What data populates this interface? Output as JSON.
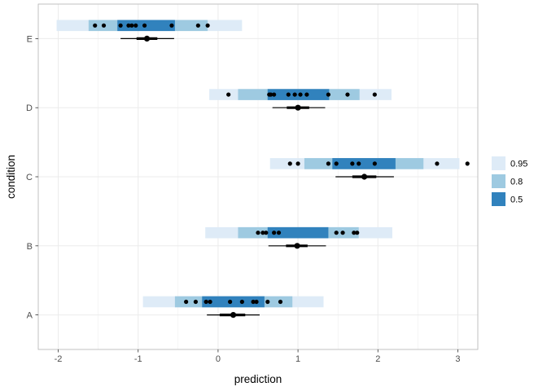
{
  "chart_data": {
    "type": "interval",
    "xlabel": "prediction",
    "ylabel": "condition",
    "xlim": [
      -2.25,
      3.25
    ],
    "x_ticks": [
      -2,
      -1,
      0,
      1,
      2,
      3
    ],
    "x_tick_labels": [
      "-2",
      "-1",
      "0",
      "1",
      "2",
      "3"
    ],
    "categories": [
      "A",
      "B",
      "C",
      "D",
      "E"
    ],
    "grid": true,
    "legend": {
      "position": "right",
      "entries": [
        {
          "label": "0.95",
          "color": "#deebf7"
        },
        {
          "label": "0.8",
          "color": "#9ecae1"
        },
        {
          "label": "0.5",
          "color": "#3182bd"
        }
      ]
    },
    "groups": [
      {
        "condition": "A",
        "intervals": {
          "0.95": [
            -0.94,
            1.32
          ],
          "0.8": [
            -0.54,
            0.93
          ],
          "0.5": [
            -0.2,
            0.58
          ]
        },
        "points": [
          -0.4,
          -0.28,
          -0.15,
          -0.1,
          0.15,
          0.3,
          0.44,
          0.48,
          0.62,
          0.78
        ],
        "summary": {
          "median": 0.19,
          "inner": [
            0.02,
            0.34
          ],
          "outer": [
            -0.14,
            0.52
          ]
        }
      },
      {
        "condition": "B",
        "intervals": {
          "0.95": [
            -0.16,
            2.18
          ],
          "0.8": [
            0.25,
            1.76
          ],
          "0.5": [
            0.62,
            1.38
          ]
        },
        "points": [
          0.5,
          0.56,
          0.6,
          0.7,
          0.76,
          1.48,
          1.56,
          1.7,
          1.74
        ],
        "summary": {
          "median": 0.99,
          "inner": [
            0.85,
            1.12
          ],
          "outer": [
            0.63,
            1.35
          ]
        }
      },
      {
        "condition": "C",
        "intervals": {
          "0.95": [
            0.65,
            3.02
          ],
          "0.8": [
            1.08,
            2.57
          ],
          "0.5": [
            1.43,
            2.22
          ]
        },
        "points": [
          0.9,
          1.0,
          1.38,
          1.48,
          1.68,
          1.76,
          1.96,
          2.74,
          3.12
        ],
        "summary": {
          "median": 1.83,
          "inner": [
            1.68,
            1.98
          ],
          "outer": [
            1.47,
            2.2
          ]
        }
      },
      {
        "condition": "D",
        "intervals": {
          "0.95": [
            -0.11,
            2.17
          ],
          "0.8": [
            0.25,
            1.77
          ],
          "0.5": [
            0.62,
            1.39
          ]
        },
        "points": [
          0.13,
          0.64,
          0.66,
          0.7,
          0.88,
          0.96,
          1.03,
          1.11,
          1.38,
          1.62,
          1.96
        ],
        "summary": {
          "median": 1.0,
          "inner": [
            0.86,
            1.14
          ],
          "outer": [
            0.68,
            1.34
          ]
        }
      },
      {
        "condition": "E",
        "intervals": {
          "0.95": [
            -2.02,
            0.3
          ],
          "0.8": [
            -1.62,
            -0.13
          ],
          "0.5": [
            -1.26,
            -0.54
          ]
        },
        "points": [
          -1.54,
          -1.43,
          -1.22,
          -1.12,
          -1.08,
          -1.03,
          -0.92,
          -0.58,
          -0.25,
          -0.13
        ],
        "summary": {
          "median": -0.89,
          "inner": [
            -1.02,
            -0.76
          ],
          "outer": [
            -1.22,
            -0.55
          ]
        }
      }
    ]
  }
}
